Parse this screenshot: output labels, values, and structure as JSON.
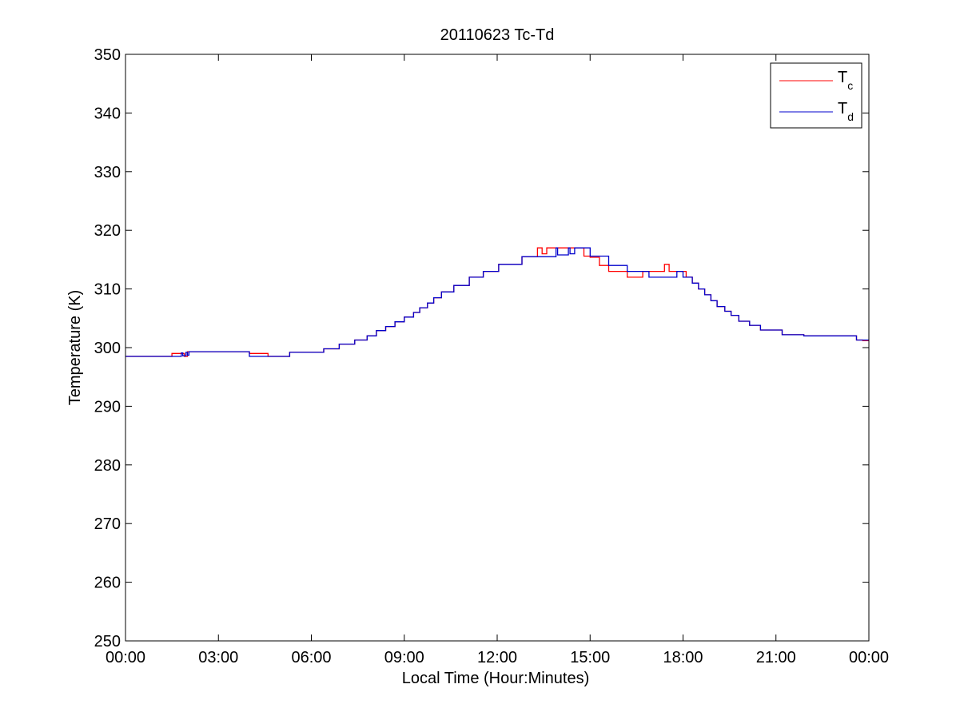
{
  "chart_data": {
    "type": "line",
    "title": "20110623 Tc-Td",
    "xlabel": "Local Time (Hour:Minutes)",
    "ylabel": "Temperature (K)",
    "xlim": [
      0,
      24
    ],
    "ylim": [
      250,
      350
    ],
    "x_ticks": [
      0,
      3,
      6,
      9,
      12,
      15,
      18,
      21,
      24
    ],
    "x_tick_labels": [
      "00:00",
      "03:00",
      "06:00",
      "09:00",
      "12:00",
      "15:00",
      "18:00",
      "21:00",
      "00:00"
    ],
    "y_ticks": [
      250,
      260,
      270,
      280,
      290,
      300,
      310,
      320,
      330,
      340,
      350
    ],
    "y_tick_labels": [
      "250",
      "260",
      "270",
      "280",
      "290",
      "300",
      "310",
      "320",
      "330",
      "340",
      "350"
    ],
    "grid": false,
    "legend_position": "top-right",
    "step": true,
    "series": [
      {
        "name": "Tc",
        "legend_main": "T",
        "legend_sub": "c",
        "color": "#ff0000",
        "x": [
          0,
          1.5,
          1.9,
          2.0,
          4.0,
          4.6,
          5.3,
          6.4,
          6.9,
          7.4,
          7.8,
          8.1,
          8.4,
          8.7,
          9.0,
          9.3,
          9.5,
          9.75,
          9.95,
          10.2,
          10.6,
          11.1,
          11.55,
          12.05,
          12.8,
          13.3,
          13.45,
          13.6,
          14.8,
          15.0,
          15.3,
          15.6,
          16.2,
          16.7,
          17.4,
          17.55,
          17.7,
          18.1,
          18.3,
          18.5,
          18.7,
          18.9,
          19.1,
          19.35,
          19.55,
          19.8,
          20.15,
          20.5,
          21.2,
          21.9,
          23.6,
          23.8,
          24
        ],
        "y": [
          298.5,
          299.0,
          298.5,
          299.3,
          299.0,
          298.5,
          299.2,
          299.8,
          300.6,
          301.3,
          302.0,
          302.9,
          303.6,
          304.4,
          305.2,
          306.0,
          306.8,
          307.6,
          308.5,
          309.5,
          310.6,
          312.0,
          313.0,
          314.2,
          315.5,
          317.0,
          316.0,
          317.0,
          315.6,
          315.4,
          314.0,
          313.0,
          312.0,
          313.0,
          314.2,
          313.0,
          313.0,
          312.0,
          311.0,
          310.0,
          309.0,
          308.0,
          307.0,
          306.2,
          305.5,
          304.5,
          303.8,
          303.0,
          302.2,
          302.0,
          301.3,
          301.2,
          301.2
        ]
      },
      {
        "name": "Td",
        "legend_main": "T",
        "legend_sub": "d",
        "color": "#0000cc",
        "x": [
          0,
          1.8,
          1.85,
          1.95,
          2.0,
          2.05,
          4.0,
          5.3,
          6.4,
          6.9,
          7.4,
          7.8,
          8.1,
          8.4,
          8.7,
          9.0,
          9.3,
          9.5,
          9.75,
          9.95,
          10.2,
          10.6,
          11.1,
          11.55,
          12.05,
          12.8,
          13.9,
          13.95,
          14.3,
          14.35,
          14.5,
          15.0,
          15.6,
          16.2,
          16.9,
          17.8,
          18.0,
          18.3,
          18.5,
          18.7,
          18.9,
          19.1,
          19.35,
          19.55,
          19.8,
          20.15,
          20.5,
          21.2,
          21.9,
          23.6,
          24
        ],
        "y": [
          298.5,
          299.1,
          298.6,
          299.2,
          298.7,
          299.3,
          298.5,
          299.2,
          299.8,
          300.6,
          301.3,
          302.0,
          302.9,
          303.6,
          304.4,
          305.2,
          306.0,
          306.8,
          307.6,
          308.5,
          309.5,
          310.6,
          312.0,
          313.0,
          314.2,
          315.5,
          317.0,
          315.8,
          317.0,
          316.0,
          317.0,
          315.6,
          314.0,
          313.0,
          312.0,
          313.0,
          312.0,
          311.0,
          310.0,
          309.0,
          308.0,
          307.0,
          306.2,
          305.5,
          304.5,
          303.8,
          303.0,
          302.2,
          302.0,
          301.3,
          301.3
        ]
      }
    ]
  }
}
